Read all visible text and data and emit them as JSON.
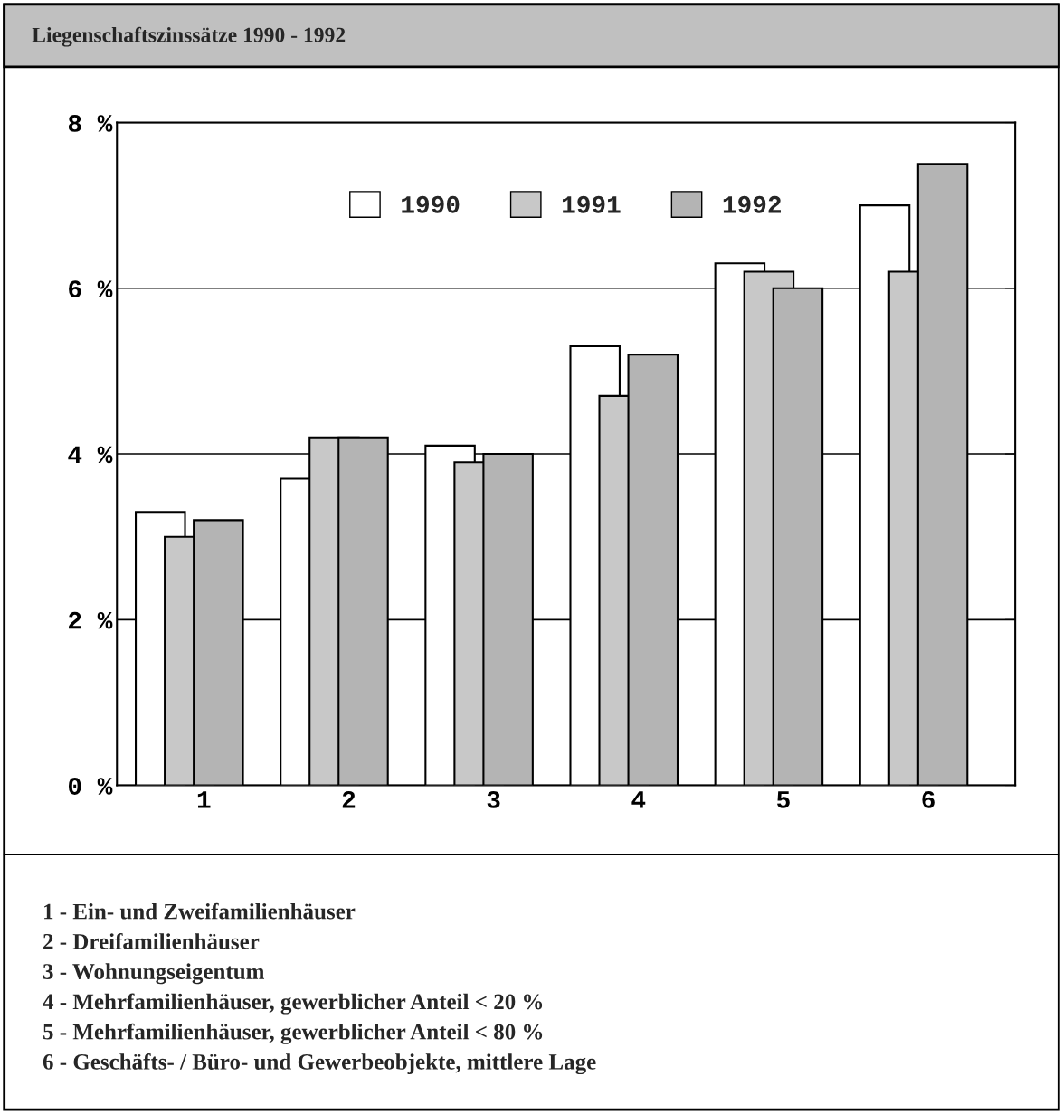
{
  "chart_data": {
    "type": "bar",
    "title": "Liegenschaftszinssätze 1990 - 1992",
    "categories": [
      "1",
      "2",
      "3",
      "4",
      "5",
      "6"
    ],
    "series": [
      {
        "name": "1990",
        "color": "#ffffff",
        "values": [
          3.3,
          3.7,
          4.1,
          5.3,
          6.3,
          7.0
        ]
      },
      {
        "name": "1991",
        "color": "#c8c8c8",
        "values": [
          3.0,
          4.2,
          3.9,
          4.7,
          6.2,
          6.2
        ]
      },
      {
        "name": "1992",
        "color": "#b4b4b4",
        "values": [
          3.2,
          4.2,
          4.0,
          5.2,
          6.0,
          7.5
        ]
      }
    ],
    "ylim": [
      0,
      8
    ],
    "yticks": [
      {
        "value": 0,
        "label": "0 %"
      },
      {
        "value": 2,
        "label": "2 %"
      },
      {
        "value": 4,
        "label": "4 %"
      },
      {
        "value": 6,
        "label": "6 %"
      },
      {
        "value": 8,
        "label": "8 %"
      }
    ],
    "grid": "y",
    "legend": "top",
    "annotations": [
      "1 - Ein- und Zweifamilienhäuser",
      "2 - Dreifamilienhäuser",
      "3 - Wohnungseigentum",
      "4 - Mehrfamilienhäuser, gewerblicher Anteil < 20 %",
      "5 - Mehrfamilienhäuser, gewerblicher Anteil < 80 %",
      "6 - Geschäfts- / Büro- und Gewerbeobjekte, mittlere Lage"
    ]
  }
}
